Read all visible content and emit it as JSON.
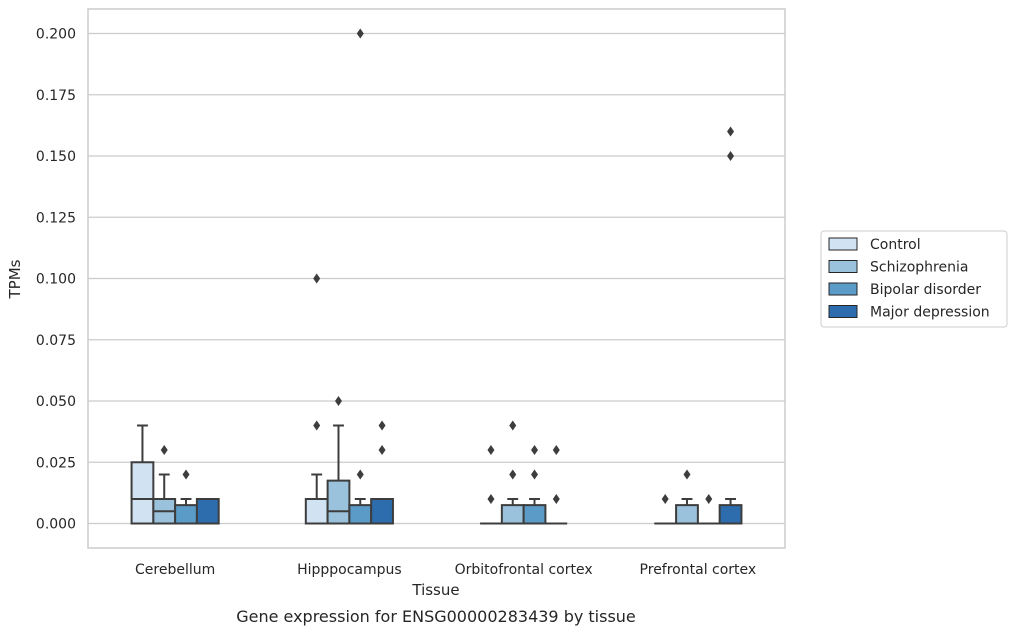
{
  "chart_data": {
    "type": "box",
    "caption": "Gene expression for ENSG00000283439 by tissue",
    "xlabel": "Tissue",
    "ylabel": "TPMs",
    "ylim": [
      -0.01,
      0.21
    ],
    "yticks": [
      0.0,
      0.025,
      0.05,
      0.075,
      0.1,
      0.125,
      0.15,
      0.175,
      0.2
    ],
    "ytick_labels": [
      "0.000",
      "0.025",
      "0.050",
      "0.075",
      "0.100",
      "0.125",
      "0.150",
      "0.175",
      "0.200"
    ],
    "grid": true,
    "legend_position": "right",
    "categories": [
      "Cerebellum",
      "Hipppocampus",
      "Orbitofrontal cortex",
      "Prefrontal cortex"
    ],
    "series": [
      {
        "name": "Control",
        "color": "#d1e2f2",
        "boxes": [
          {
            "q1": 0.0,
            "median": 0.01,
            "q3": 0.025,
            "whislo": 0.0,
            "whishi": 0.04,
            "fliers": []
          },
          {
            "q1": 0.0,
            "median": 0.0,
            "q3": 0.01,
            "whislo": 0.0,
            "whishi": 0.02,
            "fliers": [
              0.04,
              0.1
            ]
          },
          {
            "q1": 0.0,
            "median": 0.0,
            "q3": 0.0,
            "whislo": 0.0,
            "whishi": 0.0,
            "fliers": [
              0.01,
              0.03
            ]
          },
          {
            "q1": 0.0,
            "median": 0.0,
            "q3": 0.0,
            "whislo": 0.0,
            "whishi": 0.0,
            "fliers": [
              0.01
            ]
          }
        ]
      },
      {
        "name": "Schizophrenia",
        "color": "#9bc2dc",
        "boxes": [
          {
            "q1": 0.0,
            "median": 0.005,
            "q3": 0.01,
            "whislo": 0.0,
            "whishi": 0.02,
            "fliers": [
              0.03
            ]
          },
          {
            "q1": 0.0,
            "median": 0.005,
            "q3": 0.0175,
            "whislo": 0.0,
            "whishi": 0.04,
            "fliers": [
              0.05
            ]
          },
          {
            "q1": 0.0,
            "median": 0.0,
            "q3": 0.0075,
            "whislo": 0.0,
            "whishi": 0.01,
            "fliers": [
              0.02,
              0.04
            ]
          },
          {
            "q1": 0.0,
            "median": 0.0,
            "q3": 0.0075,
            "whislo": 0.0,
            "whishi": 0.01,
            "fliers": [
              0.02
            ]
          }
        ]
      },
      {
        "name": "Bipolar disorder",
        "color": "#5a9bc8",
        "boxes": [
          {
            "q1": 0.0,
            "median": 0.0,
            "q3": 0.0075,
            "whislo": 0.0,
            "whishi": 0.01,
            "fliers": [
              0.02
            ]
          },
          {
            "q1": 0.0,
            "median": 0.0,
            "q3": 0.0075,
            "whislo": 0.0,
            "whishi": 0.01,
            "fliers": [
              0.02,
              0.2
            ]
          },
          {
            "q1": 0.0,
            "median": 0.0,
            "q3": 0.0075,
            "whislo": 0.0,
            "whishi": 0.01,
            "fliers": [
              0.02,
              0.03
            ]
          },
          {
            "q1": 0.0,
            "median": 0.0,
            "q3": 0.0,
            "whislo": 0.0,
            "whishi": 0.0,
            "fliers": [
              0.01
            ]
          }
        ]
      },
      {
        "name": "Major depression",
        "color": "#2d6dae",
        "boxes": [
          {
            "q1": 0.0,
            "median": 0.0,
            "q3": 0.01,
            "whislo": 0.0,
            "whishi": 0.01,
            "fliers": []
          },
          {
            "q1": 0.0,
            "median": 0.0,
            "q3": 0.01,
            "whislo": 0.0,
            "whishi": 0.01,
            "fliers": [
              0.03,
              0.04
            ]
          },
          {
            "q1": 0.0,
            "median": 0.0,
            "q3": 0.0,
            "whislo": 0.0,
            "whishi": 0.0,
            "fliers": [
              0.01,
              0.03
            ]
          },
          {
            "q1": 0.0,
            "median": 0.0,
            "q3": 0.0075,
            "whislo": 0.0,
            "whishi": 0.01,
            "fliers": [
              0.15,
              0.16
            ]
          }
        ]
      }
    ]
  }
}
